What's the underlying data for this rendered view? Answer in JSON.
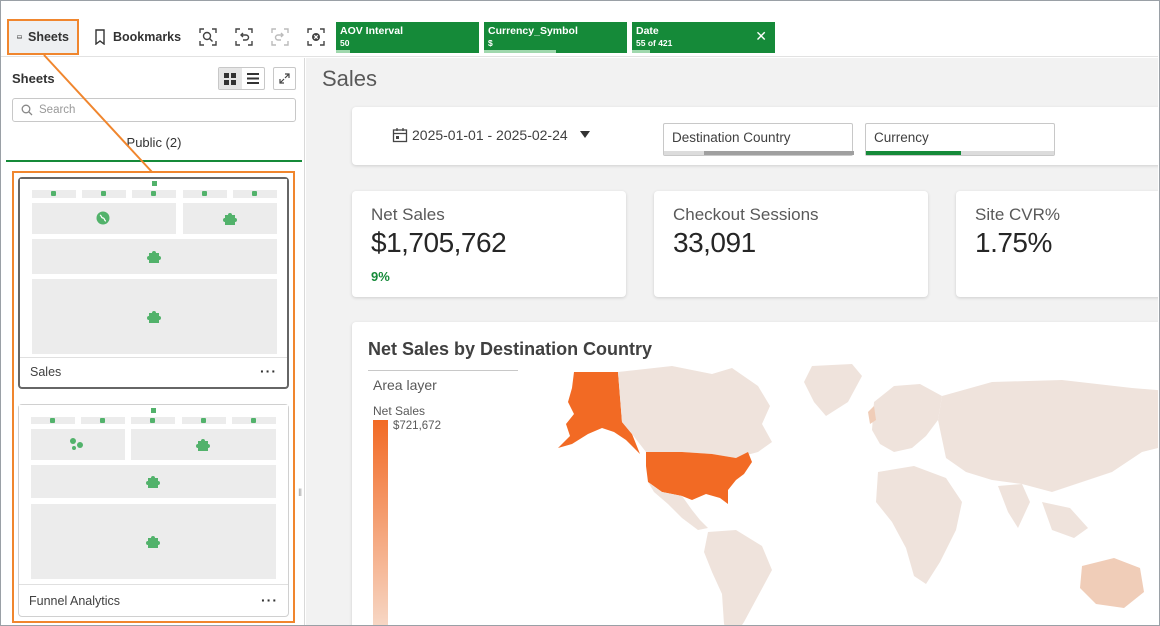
{
  "toolbar": {
    "sheets_label": "Sheets",
    "bookmarks_label": "Bookmarks",
    "selections": [
      {
        "title": "AOV Interval",
        "value": "50",
        "fill": 0.1
      },
      {
        "title": "Currency_Symbol",
        "value": "$",
        "fill": 0.5
      },
      {
        "title": "Date",
        "value": "55 of 421",
        "fill": 0.13
      }
    ]
  },
  "panel": {
    "title": "Sheets",
    "search_placeholder": "Search",
    "tab_label": "Public (2)",
    "sheets": [
      {
        "name": "Sales",
        "more": "···"
      },
      {
        "name": "Funnel Analytics",
        "more": "···"
      }
    ]
  },
  "main": {
    "page_title": "Sales",
    "filters": {
      "date_range": "2025-01-01 - 2025-02-24",
      "country_label": "Destination Country",
      "country_fill": 0.2,
      "currency_label": "Currency",
      "currency_fill": 0.5
    },
    "kpis": [
      {
        "label": "Net Sales",
        "value": "$1,705,762",
        "delta": "9%"
      },
      {
        "label": "Checkout Sessions",
        "value": "33,091",
        "delta": ""
      },
      {
        "label": "Site CVR%",
        "value": "1.75%",
        "delta": ""
      }
    ],
    "map": {
      "title": "Net Sales by Destination Country",
      "layer_label": "Area layer",
      "measure_label": "Net Sales",
      "legend_max": "$721,672"
    }
  },
  "colors": {
    "accent_green": "#158a39",
    "highlight_orange": "#f0862e",
    "map_high": "#f26a24",
    "map_low": "#efe3dc"
  }
}
